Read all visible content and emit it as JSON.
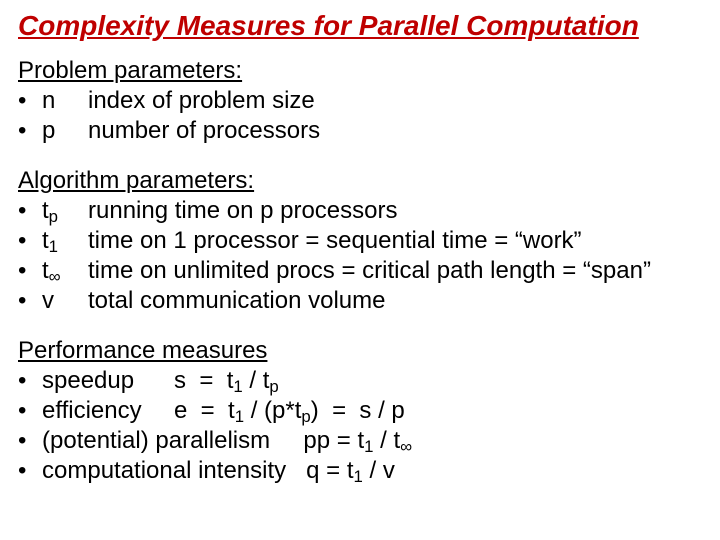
{
  "title_color": "#bf0000",
  "text_color": "#000000",
  "background_color": "#ffffff",
  "title": "Complexity Measures for Parallel Computation",
  "sections": {
    "problem": {
      "heading": "Problem parameters:",
      "items": [
        {
          "sym": "n",
          "desc": "index of problem size"
        },
        {
          "sym": "p",
          "desc": "number of processors"
        }
      ]
    },
    "algorithm": {
      "heading": "Algorithm parameters:",
      "items": [
        {
          "sym_html": "t<sub>p</sub>",
          "desc": "running time on p processors"
        },
        {
          "sym_html": "t<sub>1</sub>",
          "desc": "time on 1 processor = sequential time = “work”"
        },
        {
          "sym_html": "t<sub>∞</sub>",
          "desc": "time on unlimited procs = critical path length = “span”"
        },
        {
          "sym_html": "v",
          "desc": "total communication volume"
        }
      ]
    },
    "performance": {
      "heading": "Performance measures",
      "items": [
        {
          "label": "speedup",
          "formula_html": "s  =  t<sub>1</sub> / t<sub>p</sub>"
        },
        {
          "label": "efficiency",
          "formula_html": "e  =  t<sub>1</sub> / (p*t<sub>p</sub>)  =  s / p"
        },
        {
          "full_html": "(potential) parallelism     pp = t<sub>1</sub> / t<sub>∞</sub>"
        },
        {
          "full_html": "computational intensity   q = t<sub>1</sub> / v"
        }
      ]
    }
  }
}
